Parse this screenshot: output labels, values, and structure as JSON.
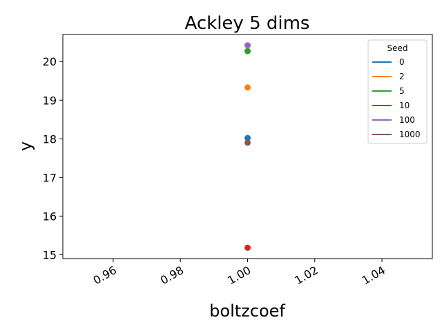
{
  "chart_data": {
    "type": "scatter",
    "title": "Ackley 5 dims",
    "xlabel": "boltzcoef",
    "ylabel": "y",
    "xlim": [
      0.945,
      1.055
    ],
    "ylim": [
      14.9,
      20.7
    ],
    "xticks": [
      0.96,
      0.98,
      1.0,
      1.02,
      1.04
    ],
    "xtick_labels": [
      "0.96",
      "0.98",
      "1.00",
      "1.02",
      "1.04"
    ],
    "yticks": [
      15,
      16,
      17,
      18,
      19,
      20
    ],
    "ytick_labels": [
      "15",
      "16",
      "17",
      "18",
      "19",
      "20"
    ],
    "grid": false,
    "legend": {
      "title": "Seed",
      "position": "top-right"
    },
    "series": [
      {
        "name": "0",
        "color": "#1f77b4",
        "points": [
          {
            "x": 1.0,
            "y": 18.02
          }
        ]
      },
      {
        "name": "2",
        "color": "#ff7f0e",
        "points": [
          {
            "x": 1.0,
            "y": 19.33
          }
        ]
      },
      {
        "name": "5",
        "color": "#2ca02c",
        "points": [
          {
            "x": 1.0,
            "y": 20.27
          }
        ]
      },
      {
        "name": "10",
        "color": "#d62728",
        "points": [
          {
            "x": 1.0,
            "y": 15.18
          }
        ]
      },
      {
        "name": "100",
        "color": "#9467bd",
        "points": [
          {
            "x": 1.0,
            "y": 20.42
          }
        ]
      },
      {
        "name": "1000",
        "color": "#8c564b",
        "points": [
          {
            "x": 1.0,
            "y": 17.9
          }
        ]
      }
    ]
  }
}
